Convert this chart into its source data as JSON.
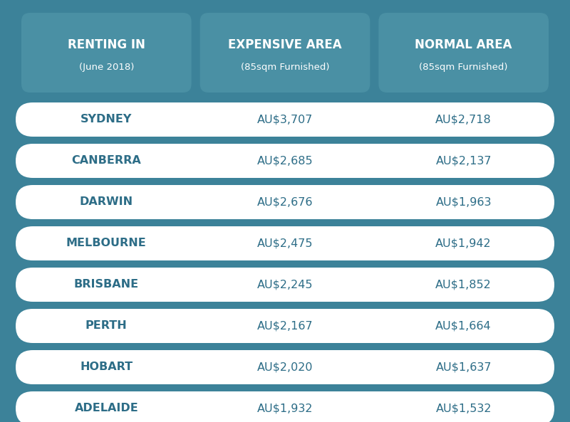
{
  "title": "RENTING IN",
  "subtitle": "(June 2018)",
  "col2_title": "EXPENSIVE AREA",
  "col2_subtitle": "(85sqm Furnished)",
  "col3_title": "NORMAL AREA",
  "col3_subtitle": "(85sqm Furnished)",
  "cities": [
    "SYDNEY",
    "CANBERRA",
    "DARWIN",
    "MELBOURNE",
    "BRISBANE",
    "PERTH",
    "HOBART",
    "ADELAIDE"
  ],
  "expensive": [
    "AU$3,707",
    "AU$2,685",
    "AU$2,676",
    "AU$2,475",
    "AU$2,245",
    "AU$2,167",
    "AU$2,020",
    "AU$1,932"
  ],
  "normal": [
    "AU$2,718",
    "AU$2,137",
    "AU$1,963",
    "AU$1,942",
    "AU$1,852",
    "AU$1,664",
    "AU$1,637",
    "AU$1,532"
  ],
  "bg_color": "#3c8299",
  "panel_color": "#4a90a4",
  "row_bg": "#ffffff",
  "text_color_header": "#ffffff",
  "text_color_row": "#2d6d87",
  "footer_panel_color": "#4a90a4"
}
